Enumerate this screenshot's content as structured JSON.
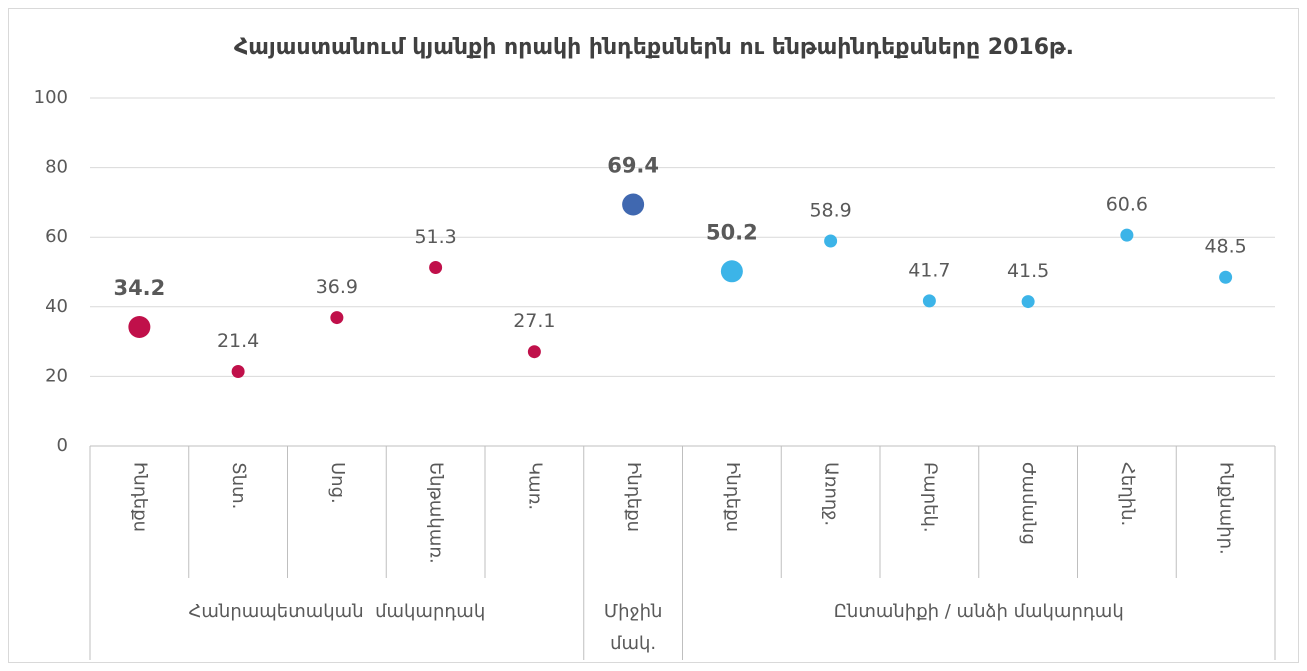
{
  "chart_data": {
    "type": "dot",
    "title": "Հայաստանում կյանքի որակի ինդեքսներն ու ենթաինդեքսները 2016թ.",
    "categories": [
      "Ինդեքս",
      "Տնտ.",
      "Սոց.",
      "Ենթակառ.",
      "Կառ.",
      "Ինդեքս",
      "Ինդեքս",
      "Առողջ.",
      "Բարեկ.",
      "Ժամանց",
      "Հեղին.",
      "Ինքնաիր."
    ],
    "groups": [
      {
        "label": "Հանրապետական  մակարդակ",
        "span": 5
      },
      {
        "label": "Միջին մակ.",
        "span": 1
      },
      {
        "label": "Ընտանիքի / անձի մակարդակ",
        "span": 6
      }
    ],
    "values": [
      34.2,
      21.4,
      36.9,
      51.3,
      27.1,
      69.4,
      50.2,
      58.9,
      41.7,
      41.5,
      60.6,
      48.5
    ],
    "point_colors": [
      "#c0104a",
      "#c0104a",
      "#c0104a",
      "#c0104a",
      "#c0104a",
      "#4068b0",
      "#3cb4e8",
      "#3cb4e8",
      "#3cb4e8",
      "#3cb4e8",
      "#3cb4e8",
      "#3cb4e8"
    ],
    "emphasized": [
      true,
      false,
      false,
      false,
      false,
      true,
      true,
      false,
      false,
      false,
      false,
      false
    ],
    "ylim": [
      0,
      100
    ],
    "yticks": [
      0,
      20,
      40,
      60,
      80,
      100
    ],
    "grid": true
  }
}
